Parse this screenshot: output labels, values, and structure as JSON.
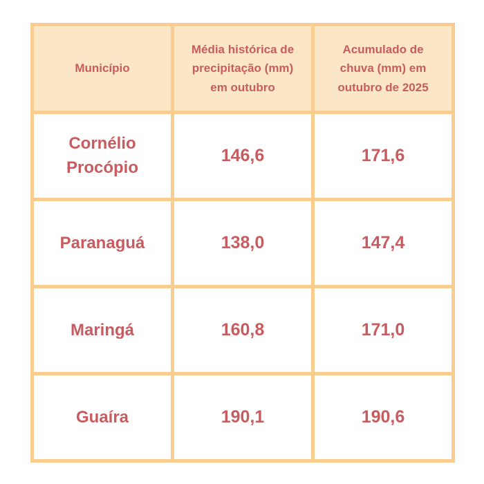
{
  "colors": {
    "header_bg": "#FBE7C6",
    "border": "#F8CD8F",
    "text": "#C75C60",
    "cell_bg": "#FFFFFF",
    "page_bg": "#FFFFFF"
  },
  "table": {
    "headers": [
      "Município",
      "Média histórica de precipitação (mm) em outubro",
      "Acumulado de chuva (mm) em outubro de 2025"
    ],
    "rows": [
      {
        "municipio": "Cornélio Procópio",
        "media": "146,6",
        "acumulado": "171,6"
      },
      {
        "municipio": "Paranaguá",
        "media": "138,0",
        "acumulado": "147,4"
      },
      {
        "municipio": "Maringá",
        "media": "160,8",
        "acumulado": "171,0"
      },
      {
        "municipio": "Guaíra",
        "media": "190,1",
        "acumulado": "190,6"
      }
    ]
  },
  "chart_data": {
    "type": "table",
    "title": "",
    "columns": [
      "Município",
      "Média histórica de precipitação (mm) em outubro",
      "Acumulado de chuva (mm) em outubro de 2025"
    ],
    "rows": [
      [
        "Cornélio Procópio",
        146.6,
        171.6
      ],
      [
        "Paranaguá",
        138.0,
        147.4
      ],
      [
        "Maringá",
        160.8,
        171.0
      ],
      [
        "Guaíra",
        190.1,
        190.6
      ]
    ],
    "units": "mm",
    "number_format": "comma-decimal",
    "legend_position": "none",
    "grid": true
  }
}
